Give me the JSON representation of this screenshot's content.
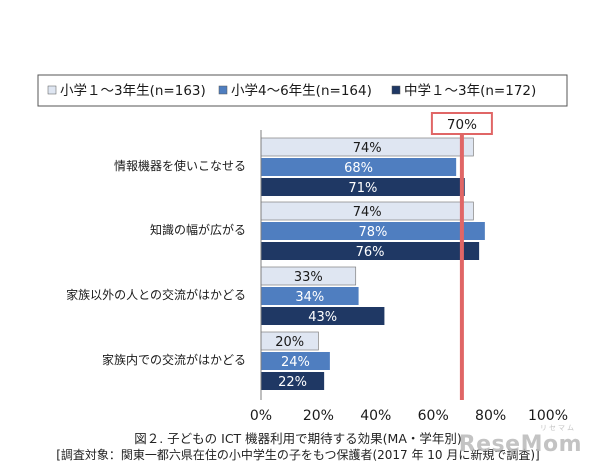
{
  "chart_data": {
    "type": "bar",
    "orientation": "horizontal",
    "categories": [
      "情報機器を使いこなせる",
      "知識の幅が広がる",
      "家族以外の人との交流がはかどる",
      "家族内での交流がはかどる"
    ],
    "series": [
      {
        "name": "小学１～3年生(n=163)",
        "values": [
          74,
          74,
          33,
          20
        ],
        "color": "#dfe6f2"
      },
      {
        "name": "小学4～6年生(n=164)",
        "values": [
          68,
          78,
          34,
          24
        ],
        "color": "#4f7ec0"
      },
      {
        "name": "中学１～3年(n=172)",
        "values": [
          71,
          76,
          43,
          22
        ],
        "color": "#1f3864"
      }
    ],
    "value_suffix": "%",
    "xlim": [
      0,
      100
    ],
    "xticks": [
      "0%",
      "20%",
      "40%",
      "60%",
      "80%",
      "100%"
    ],
    "reference_line": {
      "value": 70,
      "label": "70%",
      "color": "#e06666"
    },
    "legend_position": "top",
    "grid": false
  },
  "caption": {
    "title": "図２. 子どもの ICT 機器利用で期待する効果(MA・学年別)",
    "note": "[調査対象：関東一都六県在住の小中学生の子をもつ保護者(2017 年 10 月に新規で調査)]"
  },
  "watermark": {
    "text": "ReseMom",
    "small": "リセマム"
  }
}
